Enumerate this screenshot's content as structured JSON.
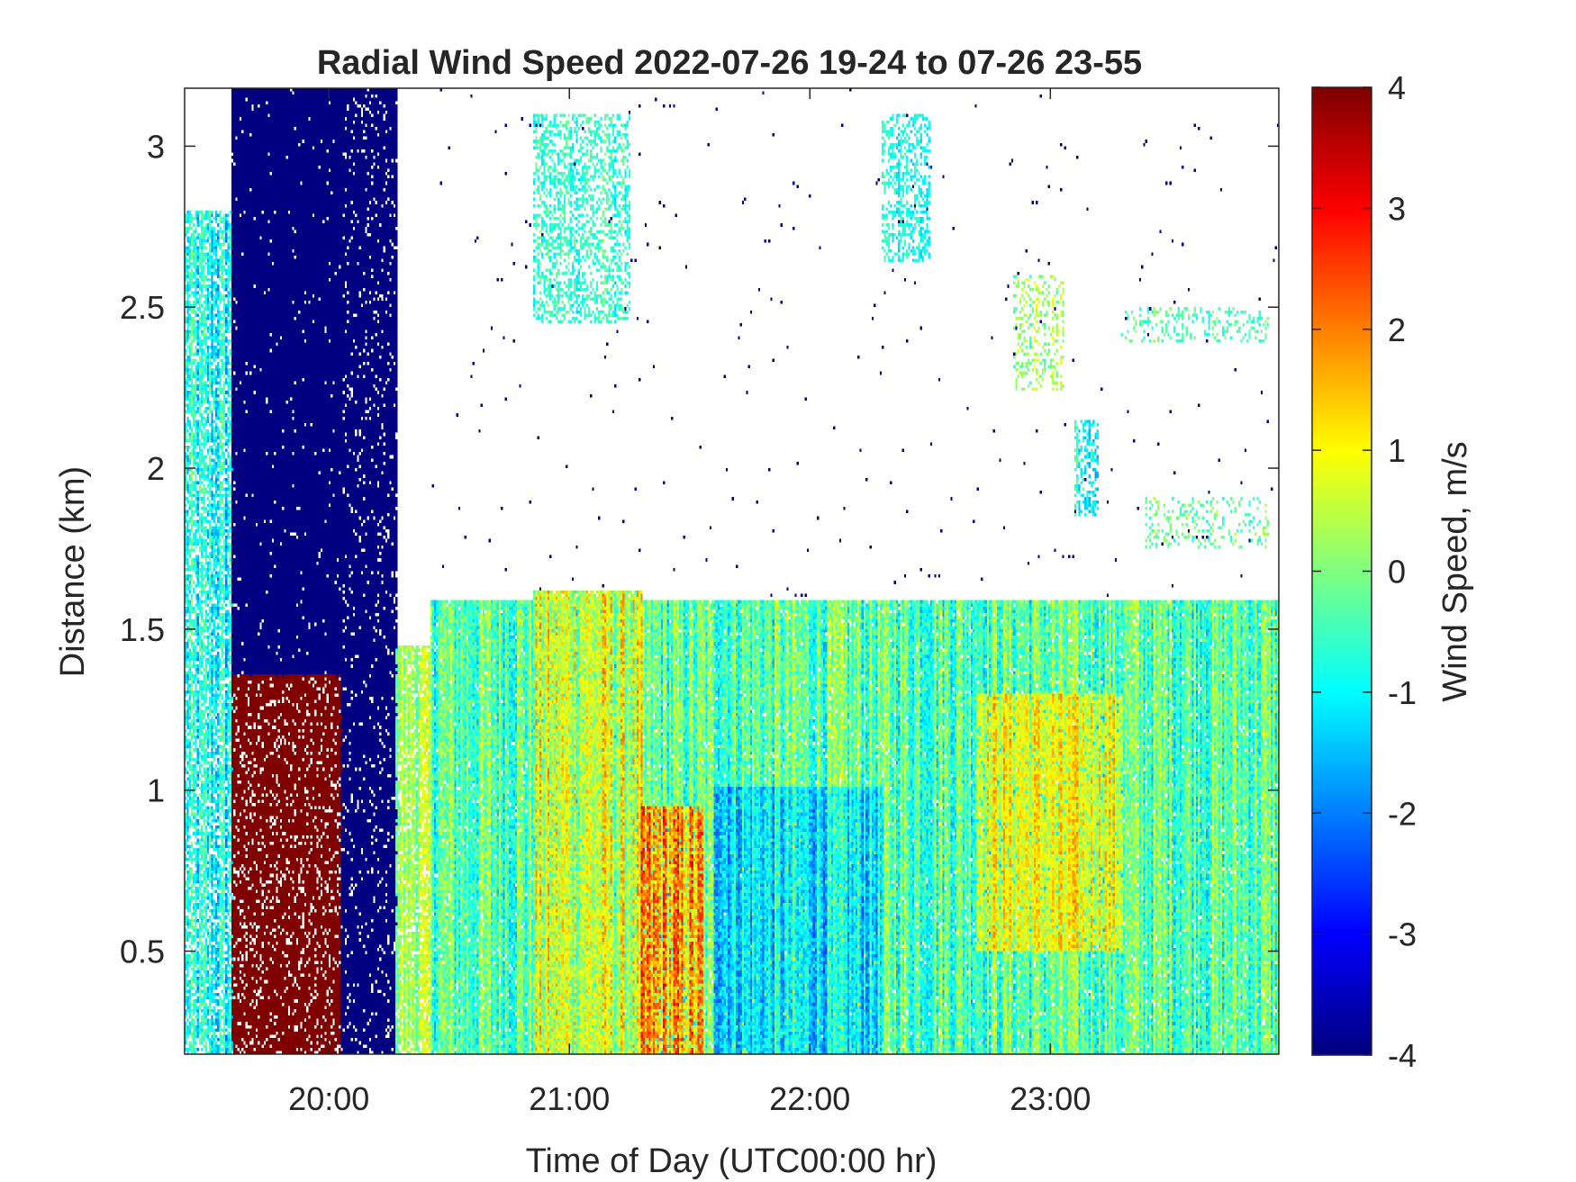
{
  "chart_data": {
    "type": "heatmap",
    "title": "Radial Wind Speed 2022-07-26 19-24 to 07-26 23-55",
    "xlabel": "Time of Day (UTC00:00 hr)",
    "ylabel": "Distance (km)",
    "colorbar_label": "Wind Speed, m/s",
    "colormap": "jet",
    "x_unit": "hour of day (UTC)",
    "xlim": [
      19.4,
      23.95
    ],
    "ylim": [
      0.18,
      3.18
    ],
    "clim": [
      -4,
      4
    ],
    "x_ticks": [
      {
        "value": 20,
        "label": "20:00"
      },
      {
        "value": 21,
        "label": "21:00"
      },
      {
        "value": 22,
        "label": "22:00"
      },
      {
        "value": 23,
        "label": "23:00"
      }
    ],
    "y_ticks": [
      {
        "value": 0.5,
        "label": "0.5"
      },
      {
        "value": 1,
        "label": "1"
      },
      {
        "value": 1.5,
        "label": "1.5"
      },
      {
        "value": 2,
        "label": "2"
      },
      {
        "value": 2.5,
        "label": "2.5"
      },
      {
        "value": 3,
        "label": "3"
      }
    ],
    "colorbar_ticks": [
      {
        "value": 4,
        "label": "4"
      },
      {
        "value": 3,
        "label": "3"
      },
      {
        "value": 2,
        "label": "2"
      },
      {
        "value": 1,
        "label": "1"
      },
      {
        "value": 0,
        "label": "0"
      },
      {
        "value": -1,
        "label": "-1"
      },
      {
        "value": -2,
        "label": "-2"
      },
      {
        "value": -3,
        "label": "-3"
      },
      {
        "value": -4,
        "label": "-4"
      }
    ],
    "regions": [
      {
        "t0": 19.4,
        "t1": 19.6,
        "d0": 0.18,
        "d1": 2.8,
        "mean": -1.0,
        "spread": 1.0,
        "density": 0.75
      },
      {
        "t0": 19.6,
        "t1": 20.05,
        "d0": 1.35,
        "d1": 3.18,
        "mean": -4.0,
        "spread": 0,
        "density": 0.98
      },
      {
        "t0": 19.6,
        "t1": 20.05,
        "d0": 0.18,
        "d1": 1.35,
        "mean": 4.0,
        "spread": 0,
        "density": 0.85
      },
      {
        "t0": 20.05,
        "t1": 20.28,
        "d0": 0.18,
        "d1": 3.18,
        "mean": -4.0,
        "spread": 0,
        "density": 0.92
      },
      {
        "t0": 20.28,
        "t1": 20.42,
        "d0": 0.18,
        "d1": 1.45,
        "mean": 0.3,
        "spread": 0.8,
        "density": 0.85
      },
      {
        "t0": 20.42,
        "t1": 23.95,
        "d0": 0.18,
        "d1": 1.58,
        "mean": -0.3,
        "spread": 1.1,
        "density": 0.97
      },
      {
        "t0": 20.85,
        "t1": 21.3,
        "d0": 0.18,
        "d1": 1.62,
        "mean": 0.6,
        "spread": 1.2,
        "density": 0.97
      },
      {
        "t0": 21.3,
        "t1": 21.55,
        "d0": 0.18,
        "d1": 0.95,
        "mean": 1.6,
        "spread": 1.4,
        "density": 0.9
      },
      {
        "t0": 21.6,
        "t1": 22.3,
        "d0": 0.18,
        "d1": 1.0,
        "mean": -1.2,
        "spread": 1.0,
        "density": 0.95
      },
      {
        "t0": 22.7,
        "t1": 23.3,
        "d0": 0.5,
        "d1": 1.3,
        "mean": 0.9,
        "spread": 0.9,
        "density": 0.9
      },
      {
        "t0": 20.85,
        "t1": 21.25,
        "d0": 2.45,
        "d1": 3.1,
        "mean": -0.6,
        "spread": 0.6,
        "density": 0.45
      },
      {
        "t0": 22.3,
        "t1": 22.5,
        "d0": 2.65,
        "d1": 3.1,
        "mean": -0.8,
        "spread": 0.5,
        "density": 0.45
      },
      {
        "t0": 22.85,
        "t1": 23.05,
        "d0": 2.25,
        "d1": 2.6,
        "mean": 0.2,
        "spread": 0.8,
        "density": 0.3
      },
      {
        "t0": 23.1,
        "t1": 23.2,
        "d0": 1.85,
        "d1": 2.15,
        "mean": -1.0,
        "spread": 0.6,
        "density": 0.5
      },
      {
        "t0": 23.3,
        "t1": 23.9,
        "d0": 2.4,
        "d1": 2.5,
        "mean": -0.4,
        "spread": 0.5,
        "density": 0.25
      },
      {
        "t0": 23.4,
        "t1": 23.9,
        "d0": 1.75,
        "d1": 1.9,
        "mean": -0.2,
        "spread": 0.6,
        "density": 0.2
      },
      {
        "t0": 20.42,
        "t1": 23.95,
        "d0": 1.6,
        "d1": 3.18,
        "mean": -4.0,
        "spread": 0,
        "density": 0.004
      }
    ]
  }
}
